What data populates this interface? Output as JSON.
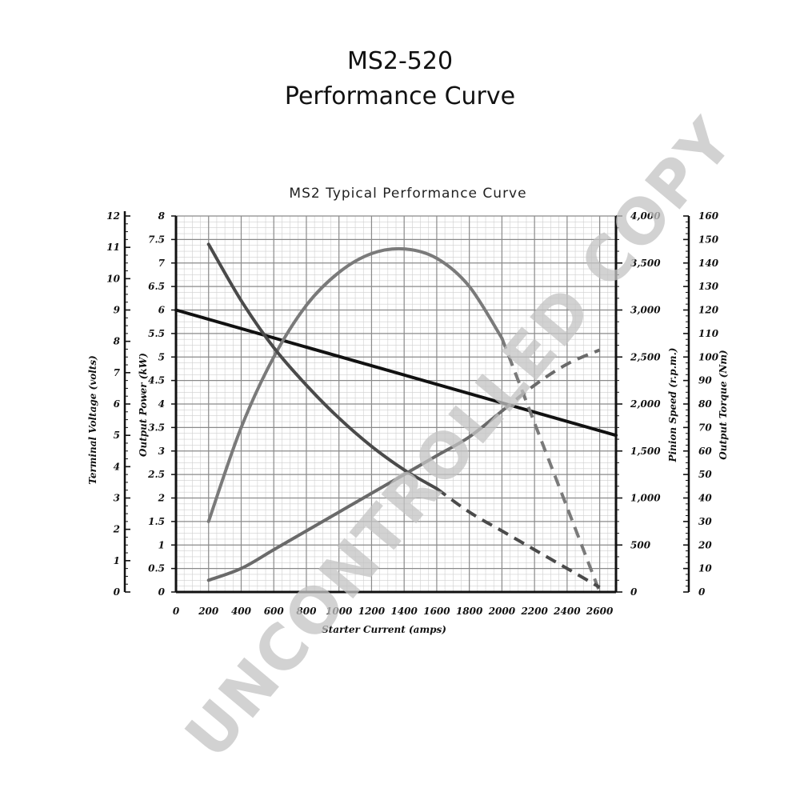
{
  "page": {
    "title_line1": "MS2-520",
    "title_line2": "Performance Curve",
    "watermark": "UNCONTROLLED COPY"
  },
  "chart_data": {
    "type": "line",
    "title": "MS2 Typical Performance Curve",
    "xlabel": "Starter Current (amps)",
    "xlim": [
      0,
      2700
    ],
    "x_ticks": [
      0,
      200,
      400,
      600,
      800,
      1000,
      1200,
      1400,
      1600,
      1800,
      2000,
      2200,
      2400,
      2600
    ],
    "grid": true,
    "axes": {
      "power": {
        "label": "Output Power (kW)",
        "range": [
          0,
          8
        ],
        "ticks": [
          "0",
          "0.5",
          "1",
          "1.5",
          "2",
          "2.5",
          "3",
          "3.5",
          "4",
          "4.5",
          "5",
          "5.5",
          "6",
          "6.5",
          "7",
          "7.5",
          "8"
        ]
      },
      "voltage": {
        "label": "Terminal Voltage (volts)",
        "range": [
          0,
          12
        ],
        "ticks": [
          "0",
          "1",
          "2",
          "3",
          "4",
          "5",
          "6",
          "7",
          "8",
          "9",
          "10",
          "11",
          "12"
        ]
      },
      "speed": {
        "label": "Pinion Speed (r.p.m.)",
        "range": [
          0,
          4000
        ],
        "ticks": [
          "0",
          "500",
          "1,000",
          "1,500",
          "2,000",
          "2,500",
          "3,000",
          "3,500",
          "4,000"
        ]
      },
      "torque": {
        "label": "Output Torque (Nm)",
        "range": [
          0,
          160
        ],
        "ticks": [
          "0",
          "10",
          "20",
          "30",
          "40",
          "50",
          "60",
          "70",
          "80",
          "90",
          "100",
          "110",
          "120",
          "130",
          "140",
          "150",
          "160"
        ]
      }
    },
    "series": [
      {
        "id": "voltage",
        "axis": "voltage",
        "color": "#111111",
        "solid": [
          [
            0,
            9.0
          ],
          [
            2700,
            5.0
          ]
        ]
      },
      {
        "id": "power",
        "axis": "power",
        "color": "#7a7a7a",
        "solid": [
          [
            200,
            1.5
          ],
          [
            400,
            3.5
          ],
          [
            600,
            5.0
          ],
          [
            800,
            6.1
          ],
          [
            1000,
            6.8
          ],
          [
            1200,
            7.2
          ],
          [
            1400,
            7.3
          ],
          [
            1600,
            7.1
          ],
          [
            1800,
            6.5
          ],
          [
            2000,
            5.4
          ]
        ],
        "dashed": [
          [
            2000,
            5.4
          ],
          [
            2200,
            3.6
          ],
          [
            2400,
            1.8
          ],
          [
            2600,
            0.0
          ]
        ]
      },
      {
        "id": "speed",
        "axis": "speed",
        "color": "#4a4a4a",
        "solid": [
          [
            200,
            3700
          ],
          [
            400,
            3100
          ],
          [
            600,
            2600
          ],
          [
            800,
            2200
          ],
          [
            1000,
            1850
          ],
          [
            1200,
            1550
          ],
          [
            1400,
            1300
          ],
          [
            1600,
            1100
          ]
        ],
        "dashed": [
          [
            1600,
            1100
          ],
          [
            1800,
            850
          ],
          [
            2000,
            650
          ],
          [
            2200,
            450
          ],
          [
            2400,
            250
          ],
          [
            2600,
            50
          ]
        ]
      },
      {
        "id": "torque",
        "axis": "torque",
        "color": "#6a6a6a",
        "solid": [
          [
            200,
            5
          ],
          [
            400,
            10
          ],
          [
            600,
            18
          ],
          [
            800,
            26
          ],
          [
            1000,
            34
          ],
          [
            1200,
            42
          ],
          [
            1400,
            50
          ],
          [
            1600,
            58
          ],
          [
            1800,
            66
          ],
          [
            2000,
            77
          ]
        ],
        "dashed": [
          [
            2000,
            77
          ],
          [
            2200,
            88
          ],
          [
            2400,
            97
          ],
          [
            2600,
            103
          ]
        ]
      }
    ]
  }
}
